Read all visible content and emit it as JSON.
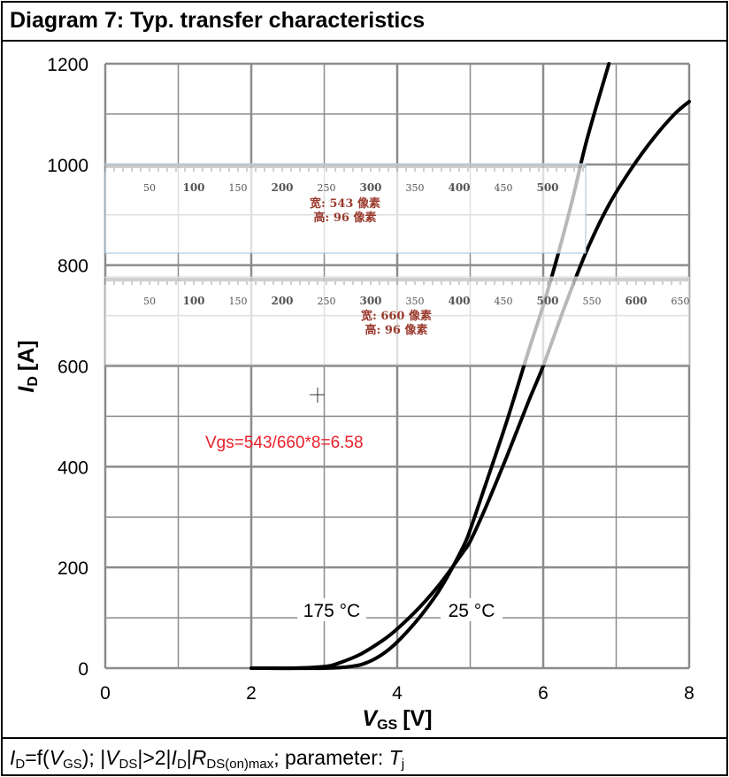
{
  "header": {
    "title": "Diagram 7: Typ. transfer characteristics"
  },
  "footer": {
    "i": "I",
    "d": "D",
    "eq": "=f(",
    "v": "V",
    "gs": "GS",
    "mid1": "); |",
    "v2": "V",
    "ds": "DS",
    "mid2": "|>2|",
    "i2": "I",
    "d2": "D",
    "mid3": "|",
    "r": "R",
    "dson": "DS(on)max",
    "mid4": "; parameter: ",
    "t": "T",
    "j": "j"
  },
  "chart_data": {
    "type": "line",
    "title": "Diagram 7: Typ. transfer characteristics",
    "xlabel": "VGS [V]",
    "ylabel": "ID [A]",
    "xlabel_main": "V",
    "xlabel_sub": "GS",
    "xlabel_unit": "[V]",
    "ylabel_main": "I",
    "ylabel_sub": "D",
    "ylabel_unit": "[A]",
    "xlim": [
      0,
      8
    ],
    "ylim": [
      0,
      1200
    ],
    "x_ticks": [
      0,
      2,
      4,
      6,
      8
    ],
    "y_ticks": [
      0,
      200,
      400,
      600,
      800,
      1000,
      1200
    ],
    "grid": true,
    "series": [
      {
        "name": "175 °C",
        "x": [
          2.0,
          2.6,
          3.0,
          3.2,
          3.5,
          3.8,
          4.0,
          4.3,
          4.6,
          4.9,
          5.0,
          5.2,
          5.5,
          5.8,
          6.0,
          6.3,
          6.6,
          6.9,
          7.2,
          7.5,
          7.8,
          8.0
        ],
        "y": [
          0,
          0,
          3,
          10,
          28,
          55,
          78,
          120,
          170,
          230,
          252,
          315,
          420,
          530,
          600,
          720,
          830,
          920,
          990,
          1050,
          1100,
          1125
        ]
      },
      {
        "name": "25 °C",
        "x": [
          2.0,
          3.0,
          3.4,
          3.6,
          3.8,
          4.0,
          4.3,
          4.6,
          4.9,
          5.0,
          5.2,
          5.5,
          5.8,
          6.0,
          6.2,
          6.4,
          6.6,
          6.9
        ],
        "y": [
          0,
          0,
          4,
          12,
          28,
          52,
          100,
          160,
          240,
          275,
          360,
          490,
          630,
          720,
          820,
          930,
          1050,
          1200
        ]
      }
    ],
    "series_labels": [
      "175 °C",
      "25 °C"
    ]
  },
  "overlays": {
    "ruler1": {
      "ticks": [
        "50",
        "100",
        "150",
        "200",
        "250",
        "300",
        "350",
        "400",
        "450",
        "500"
      ],
      "line1": "宽: 543 像素",
      "line2": "高: 96 像素"
    },
    "ruler2": {
      "ticks": [
        "50",
        "100",
        "150",
        "200",
        "250",
        "300",
        "350",
        "400",
        "450",
        "500",
        "550",
        "600",
        "650"
      ],
      "line1": "宽: 660 像素",
      "line2": "高: 96 像素"
    },
    "annotation": "Vgs=543/660*8=6.58"
  },
  "colors": {
    "curve": "#000000",
    "grid": "#8c8c8c",
    "annotation": "#e8202a",
    "ruler_text": "#9a3b2e",
    "ruler_border": "#9fc3e0"
  }
}
